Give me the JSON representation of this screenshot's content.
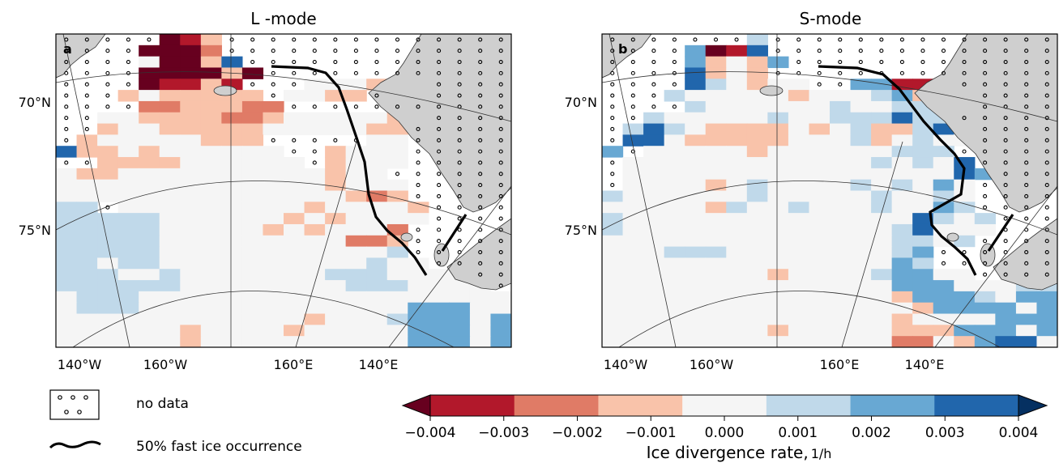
{
  "figure": {
    "legend": {
      "no_data_label": "no data",
      "fast_ice_label": "50% fast ice occurrence"
    },
    "colorbar": {
      "ticks": [
        "−0.004",
        "−0.003",
        "−0.002",
        "−0.001",
        "0.000",
        "0.001",
        "0.002",
        "0.003",
        "0.004"
      ],
      "label_main": "Ice divergence rate,",
      "label_unit": "1/h",
      "colors": [
        "#67001f",
        "#b2182b",
        "#e07b66",
        "#f9c3aa",
        "#f5f5f5",
        "#c0d9ea",
        "#68a8d3",
        "#2166ac",
        "#053061"
      ],
      "extend": "both"
    },
    "colors": {
      "land": "#cfcfcf",
      "ocean": "#ffffff",
      "coastline": "#222222",
      "fast_ice_line": "#000000",
      "graticule": "#333333"
    }
  },
  "chart_data": [
    {
      "type": "heatmap",
      "panel_letter": "a",
      "title": "L -mode",
      "lat_labels": [
        "70°N",
        "75°N"
      ],
      "lon_labels": [
        "140°W",
        "160°W",
        "160°E",
        "140°E"
      ],
      "grid_cols": 22,
      "value_levels": [
        -4,
        -3,
        -2,
        -1,
        0,
        1,
        2,
        3,
        4
      ],
      "cells": [
        "NNNNNMLhNNNNNNNNNNNNNN",
        "NNNNrMMkNNNNNNNNNNNNNN",
        "NNNNDMMhdNNNNNNNNNNNNN",
        "NNNNMMMMhMNNNNNNNNNNNN",
        "NNNNMLLhLNNNbDDhLLNNNN",
        "NNNhbhhhhhNbbhhNLLNNNN",
        "NNNNkkhhhkkNNNNNNNNNNN",
        "NNbbhhhhkkhbbbbbhhNNNN",
        "NNhbbhhhhhbbbbbhhNNNNN",
        "NhbbbbbhhhNNNNNbbNNNNN",
        "dhhbhbbbbbbNNhbbbNNNNN",
        "NNhhhhbbbbbbNhbbbNNNNN",
        "bhhbbbbbbbbbbhbbNNNNNN",
        "bbbbbbbbbbbbbhbbbNNNNN",
        "bbbbbbbbbbbbbbhkhNNNNN",
        "ccNbbbbbbbbbhbbbbhNNNN",
        "cccccbbbbbbhbhbbbbNNNN",
        "cccccbbbbbhbhbbbkNNNNN",
        "cccccbbbbbbbbbkkhNNNNN",
        "cccccbbbbbbbbbbbcNNNNN",
        "ccbccbbbbbbbbbbcbbNNNN",
        "cccbbcbbbbbbbcccbbbbNN",
        "ccccccbbbbbbbbcccbbbbN",
        "bcccbbbbbbbbbbbbbbbbbb",
        "bcccbbbbbbbbbbbbbfffbb",
        "bbbbbbbbbbbbhbbbcfffbf",
        "bbbbbbhbbbbhbbbbbfffbf",
        "bbbbbbhbbbbbbbbbbfffbf"
      ]
    },
    {
      "type": "heatmap",
      "panel_letter": "b",
      "title": "S-mode",
      "lat_labels": [
        "70°N",
        "75°N"
      ],
      "lon_labels": [
        "140°W",
        "160°W",
        "160°E",
        "140°E"
      ],
      "grid_cols": 22,
      "value_levels": [
        -4,
        -3,
        -2,
        -1,
        0,
        1,
        2,
        3,
        4
      ],
      "cells": [
        "NNNNNNNcNNNNNNNNNNNNNN",
        "NNNNfMLdNNNNNNNNNNNNNN",
        "NNNNfhbhfNNNNNNNNNNNNN",
        "NNNNdhbhNNNNNNNNNNNNNN",
        "NNNNdcbhbbNNffLLhNNNNN",
        "NNNcbbbbbhbbbcfhLLNNNN",
        "NNNNcbbbbbbcbbcccdNNNN",
        "NNcbbbbbcbbcccdccNNNNN",
        "NcdcbhhhhbhbchhcdcNNNN",
        "NddbhhhhhbbbchbcbbNNNN",
        "fNbbbbbhbbbbbbcccNNNNN",
        "NbbbbbbbbbbbbcbcbdNNNN",
        "NbbbbbbbbbbbbbbbbdfNNN",
        "NbbbbhbcbbbbcbcbfbNNNN",
        "cbbbbbbcbbbbbcbbcbNNNN",
        "bbbbbhcbbcbbbcbbfcNNNN",
        "cbbbbbbbbbbbbbbdcbcNNN",
        "cbbbbbbbbbbbbbcdbbbNNN",
        "bbbbbbbbbbbbbbccbcNNNN",
        "bbbcccbbbbbbbbcfNNNNNN",
        "bbbbbbbbbbbbbbfcNNNNNN",
        "bbbbbbbbhbbbbcffbbNNNN",
        "bbbbbbbbbbbbbbfffbbbcc",
        "bbbbbbbbbbbbbbhfffcbff",
        "bbbbbbbbbbbbbbbhffffbf",
        "bbbbbbbbbbbbbbhbbbbfff",
        "bbbbbbbbhbbbbbhhhfffbf",
        "bbbbbbbbbbbbbbkkbhfddb"
      ]
    }
  ]
}
